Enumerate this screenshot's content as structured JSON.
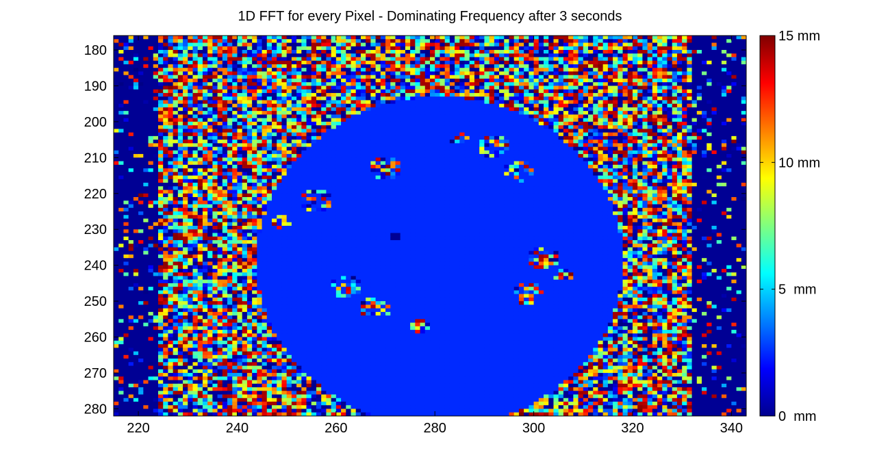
{
  "chart_data": {
    "type": "heatmap",
    "title": "1D FFT for every Pixel - Dominating Frequency after 3 seconds",
    "xlabel": "",
    "ylabel": "",
    "xlim": [
      215,
      343
    ],
    "ylim": [
      176,
      282
    ],
    "y_direction": "down",
    "x_ticks": [
      220,
      240,
      260,
      280,
      300,
      320,
      340
    ],
    "y_ticks": [
      180,
      190,
      200,
      210,
      220,
      230,
      240,
      250,
      260,
      270,
      280
    ],
    "colormap": "jet",
    "value_range": [
      0,
      15
    ],
    "colorbar": {
      "ticks": [
        {
          "value": 0,
          "label": "0  mm"
        },
        {
          "value": 5,
          "label": "5  mm"
        },
        {
          "value": 10,
          "label": "10 mm"
        },
        {
          "value": 15,
          "label": "15 mm"
        }
      ]
    },
    "regions": [
      {
        "label": "dominant uniform region",
        "value": 2.5,
        "center": [
          281,
          239
        ],
        "radius_x": 37,
        "radius_y": 46
      },
      {
        "label": "dark patch",
        "value": 0.3,
        "x": [
          271,
          273
        ],
        "y": [
          231,
          233
        ]
      },
      {
        "label": "left border",
        "value": 0.3,
        "x": [
          215,
          224
        ]
      },
      {
        "label": "right border",
        "value": 0.3,
        "x": [
          332,
          343
        ]
      }
    ]
  }
}
